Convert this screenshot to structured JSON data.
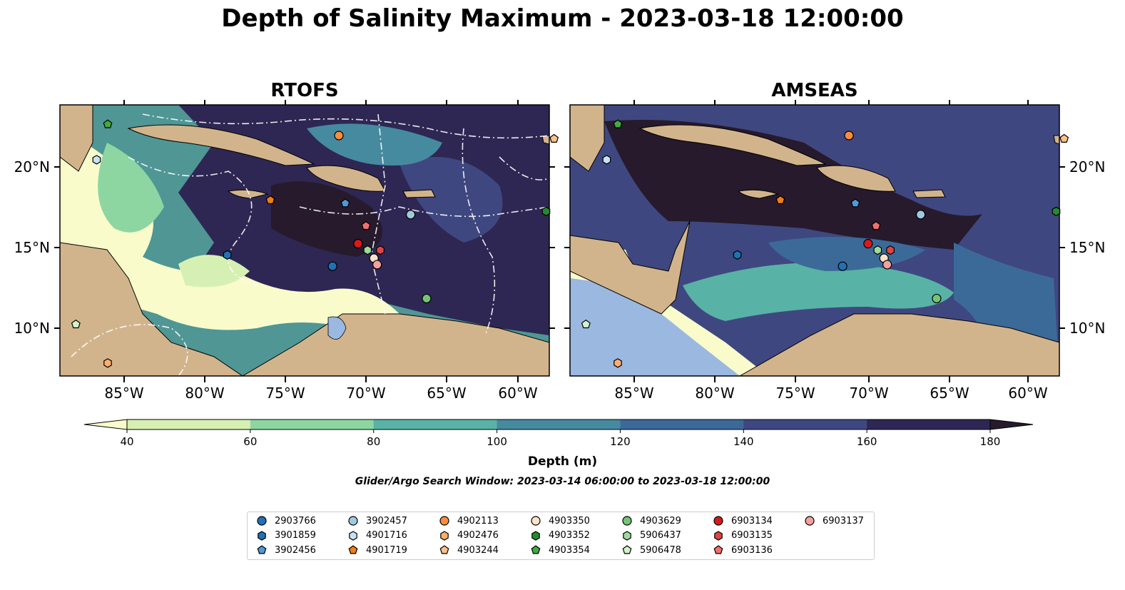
{
  "title": "Depth of Salinity Maximum - 2023-03-18 12:00:00",
  "panels": [
    {
      "title": "RTOFS"
    },
    {
      "title": "AMSEAS"
    }
  ],
  "axes": {
    "lon_ticks": [
      "85°W",
      "80°W",
      "75°W",
      "70°W",
      "65°W",
      "60°W"
    ],
    "lat_ticks": [
      "20°N",
      "15°N",
      "10°N"
    ]
  },
  "colorbar": {
    "label": "Depth (m)",
    "ticks": [
      "40",
      "60",
      "80",
      "100",
      "120",
      "140",
      "160",
      "180"
    ],
    "colors": [
      "#f9fbcb",
      "#d6f0b4",
      "#8dd6a2",
      "#58b3a6",
      "#468aa0",
      "#3c6a98",
      "#3f4780",
      "#2e2753",
      "#261a2c"
    ],
    "extend": "both"
  },
  "search_window": "Glider/Argo Search Window: 2023-03-14 06:00:00 to 2023-03-18 12:00:00",
  "land_color": "#d2b48c",
  "floats": [
    {
      "id": "2903766",
      "marker": "circle",
      "color": "#2171b5"
    },
    {
      "id": "3901859",
      "marker": "hexagon",
      "color": "#2171b5"
    },
    {
      "id": "3902456",
      "marker": "pentagon",
      "color": "#4f9ad6"
    },
    {
      "id": "3902457",
      "marker": "circle",
      "color": "#9ecae1"
    },
    {
      "id": "4901716",
      "marker": "hexagon",
      "color": "#c6e2f5"
    },
    {
      "id": "4901719",
      "marker": "pentagon",
      "color": "#f07d18"
    },
    {
      "id": "4902113",
      "marker": "circle",
      "color": "#fd8d3c"
    },
    {
      "id": "4902476",
      "marker": "hexagon",
      "color": "#fdae6b"
    },
    {
      "id": "4903244",
      "marker": "pentagon",
      "color": "#fdc08c"
    },
    {
      "id": "4903350",
      "marker": "circle",
      "color": "#fee3c8"
    },
    {
      "id": "4903352",
      "marker": "hexagon",
      "color": "#238b2d"
    },
    {
      "id": "4903354",
      "marker": "pentagon",
      "color": "#41ab3d"
    },
    {
      "id": "4903629",
      "marker": "circle",
      "color": "#74c476"
    },
    {
      "id": "5906437",
      "marker": "hexagon",
      "color": "#a1d99b"
    },
    {
      "id": "5906478",
      "marker": "pentagon",
      "color": "#d2f2cc"
    },
    {
      "id": "6903134",
      "marker": "circle",
      "color": "#d7191c"
    },
    {
      "id": "6903135",
      "marker": "hexagon",
      "color": "#e04444"
    },
    {
      "id": "6903136",
      "marker": "pentagon",
      "color": "#f07070"
    },
    {
      "id": "6903137",
      "marker": "circle",
      "color": "#f4a0a0"
    }
  ],
  "float_positions": [
    {
      "id": "2903766",
      "lon": -71.9,
      "lat": 13.8
    },
    {
      "id": "3901859",
      "lon": -78.5,
      "lat": 14.5
    },
    {
      "id": "3902456",
      "lon": -71.1,
      "lat": 17.7
    },
    {
      "id": "3902457",
      "lon": -67.0,
      "lat": 17.0
    },
    {
      "id": "4901716",
      "lon": -86.7,
      "lat": 20.4
    },
    {
      "id": "4901719",
      "lon": -75.8,
      "lat": 17.9
    },
    {
      "id": "4902113",
      "lon": -71.5,
      "lat": 21.9
    },
    {
      "id": "4902476",
      "lon": -86.0,
      "lat": 7.8
    },
    {
      "id": "4903244",
      "lon": -58.0,
      "lat": 21.7
    },
    {
      "id": "4903350",
      "lon": -69.3,
      "lat": 14.3
    },
    {
      "id": "4903352",
      "lon": -58.5,
      "lat": 17.2
    },
    {
      "id": "4903354",
      "lon": -86.0,
      "lat": 22.6
    },
    {
      "id": "4903629",
      "lon": -66.0,
      "lat": 11.8
    },
    {
      "id": "5906437",
      "lon": -69.7,
      "lat": 14.8
    },
    {
      "id": "5906478",
      "lon": -88.0,
      "lat": 10.2
    },
    {
      "id": "6903134",
      "lon": -70.3,
      "lat": 15.2
    },
    {
      "id": "6903135",
      "lon": -68.9,
      "lat": 14.8
    },
    {
      "id": "6903136",
      "lon": -69.8,
      "lat": 16.3
    },
    {
      "id": "6903137",
      "lon": -69.1,
      "lat": 13.9
    }
  ]
}
